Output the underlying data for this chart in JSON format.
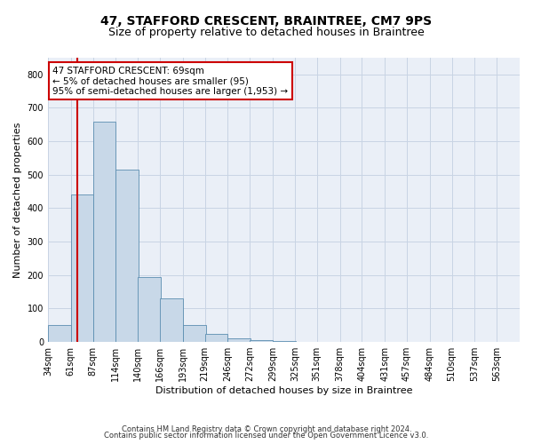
{
  "title1": "47, STAFFORD CRESCENT, BRAINTREE, CM7 9PS",
  "title2": "Size of property relative to detached houses in Braintree",
  "xlabel": "Distribution of detached houses by size in Braintree",
  "ylabel": "Number of detached properties",
  "bin_labels": [
    "34sqm",
    "61sqm",
    "87sqm",
    "114sqm",
    "140sqm",
    "166sqm",
    "193sqm",
    "219sqm",
    "246sqm",
    "272sqm",
    "299sqm",
    "325sqm",
    "351sqm",
    "378sqm",
    "404sqm",
    "431sqm",
    "457sqm",
    "484sqm",
    "510sqm",
    "537sqm",
    "563sqm"
  ],
  "bin_edges": [
    34,
    61,
    87,
    114,
    140,
    166,
    193,
    219,
    246,
    272,
    299,
    325,
    351,
    378,
    404,
    431,
    457,
    484,
    510,
    537,
    563
  ],
  "bar_heights": [
    50,
    440,
    660,
    515,
    195,
    130,
    50,
    25,
    10,
    5,
    2,
    1,
    1,
    0,
    0,
    0,
    0,
    0,
    0,
    0
  ],
  "bar_color": "#c8d8e8",
  "bar_edge_color": "#5b8db0",
  "property_size": 69,
  "property_line_color": "#cc0000",
  "annotation_line1": "47 STAFFORD CRESCENT: 69sqm",
  "annotation_line2": "← 5% of detached houses are smaller (95)",
  "annotation_line3": "95% of semi-detached houses are larger (1,953) →",
  "annotation_box_color": "#ffffff",
  "annotation_box_edge": "#cc0000",
  "ylim": [
    0,
    850
  ],
  "yticks": [
    0,
    100,
    200,
    300,
    400,
    500,
    600,
    700,
    800
  ],
  "grid_color": "#c8d4e4",
  "background_color": "#eaeff7",
  "footer1": "Contains HM Land Registry data © Crown copyright and database right 2024.",
  "footer2": "Contains public sector information licensed under the Open Government Licence v3.0.",
  "title1_fontsize": 10,
  "title2_fontsize": 9,
  "axis_label_fontsize": 8,
  "tick_fontsize": 7,
  "annotation_fontsize": 7.5,
  "footer_fontsize": 6
}
